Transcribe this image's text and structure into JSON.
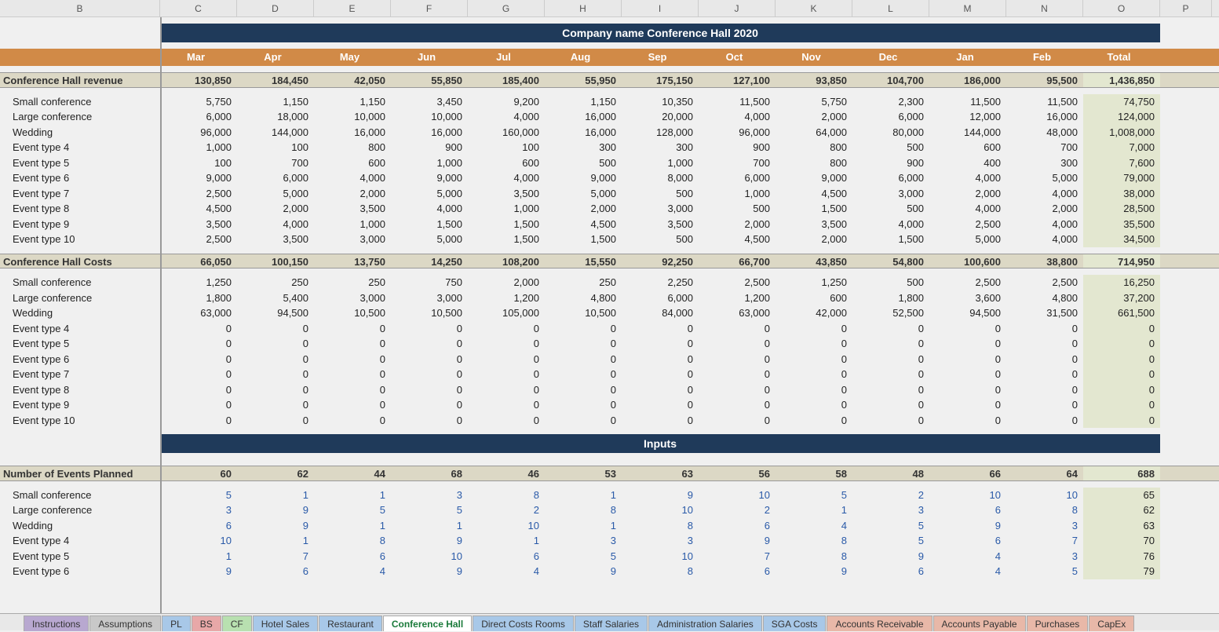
{
  "colLetters": [
    "B",
    "C",
    "D",
    "E",
    "F",
    "G",
    "H",
    "I",
    "J",
    "K",
    "L",
    "M",
    "N",
    "O",
    "P"
  ],
  "title": "Company name Conference Hall 2020",
  "months": [
    "Mar",
    "Apr",
    "May",
    "Jun",
    "Jul",
    "Aug",
    "Sep",
    "Oct",
    "Nov",
    "Dec",
    "Jan",
    "Feb",
    "Total"
  ],
  "inputsTitle": "Inputs",
  "sections": [
    {
      "header": "Conference Hall revenue",
      "totals": [
        "130,850",
        "184,450",
        "42,050",
        "55,850",
        "185,400",
        "55,950",
        "175,150",
        "127,100",
        "93,850",
        "104,700",
        "186,000",
        "95,500",
        "1,436,850"
      ],
      "rows": [
        {
          "label": "Small conference",
          "v": [
            "5,750",
            "1,150",
            "1,150",
            "3,450",
            "9,200",
            "1,150",
            "10,350",
            "11,500",
            "5,750",
            "2,300",
            "11,500",
            "11,500",
            "74,750"
          ]
        },
        {
          "label": "Large conference",
          "v": [
            "6,000",
            "18,000",
            "10,000",
            "10,000",
            "4,000",
            "16,000",
            "20,000",
            "4,000",
            "2,000",
            "6,000",
            "12,000",
            "16,000",
            "124,000"
          ]
        },
        {
          "label": "Wedding",
          "v": [
            "96,000",
            "144,000",
            "16,000",
            "16,000",
            "160,000",
            "16,000",
            "128,000",
            "96,000",
            "64,000",
            "80,000",
            "144,000",
            "48,000",
            "1,008,000"
          ]
        },
        {
          "label": "Event type 4",
          "v": [
            "1,000",
            "100",
            "800",
            "900",
            "100",
            "300",
            "300",
            "900",
            "800",
            "500",
            "600",
            "700",
            "7,000"
          ]
        },
        {
          "label": "Event type 5",
          "v": [
            "100",
            "700",
            "600",
            "1,000",
            "600",
            "500",
            "1,000",
            "700",
            "800",
            "900",
            "400",
            "300",
            "7,600"
          ]
        },
        {
          "label": "Event type 6",
          "v": [
            "9,000",
            "6,000",
            "4,000",
            "9,000",
            "4,000",
            "9,000",
            "8,000",
            "6,000",
            "9,000",
            "6,000",
            "4,000",
            "5,000",
            "79,000"
          ]
        },
        {
          "label": "Event type 7",
          "v": [
            "2,500",
            "5,000",
            "2,000",
            "5,000",
            "3,500",
            "5,000",
            "500",
            "1,000",
            "4,500",
            "3,000",
            "2,000",
            "4,000",
            "38,000"
          ]
        },
        {
          "label": "Event type 8",
          "v": [
            "4,500",
            "2,000",
            "3,500",
            "4,000",
            "1,000",
            "2,000",
            "3,000",
            "500",
            "1,500",
            "500",
            "4,000",
            "2,000",
            "28,500"
          ]
        },
        {
          "label": "Event type 9",
          "v": [
            "3,500",
            "4,000",
            "1,000",
            "1,500",
            "1,500",
            "4,500",
            "3,500",
            "2,000",
            "3,500",
            "4,000",
            "2,500",
            "4,000",
            "35,500"
          ]
        },
        {
          "label": "Event type 10",
          "v": [
            "2,500",
            "3,500",
            "3,000",
            "5,000",
            "1,500",
            "1,500",
            "500",
            "4,500",
            "2,000",
            "1,500",
            "5,000",
            "4,000",
            "34,500"
          ]
        }
      ]
    },
    {
      "header": "Conference Hall Costs",
      "totals": [
        "66,050",
        "100,150",
        "13,750",
        "14,250",
        "108,200",
        "15,550",
        "92,250",
        "66,700",
        "43,850",
        "54,800",
        "100,600",
        "38,800",
        "714,950"
      ],
      "rows": [
        {
          "label": "Small conference",
          "v": [
            "1,250",
            "250",
            "250",
            "750",
            "2,000",
            "250",
            "2,250",
            "2,500",
            "1,250",
            "500",
            "2,500",
            "2,500",
            "16,250"
          ]
        },
        {
          "label": "Large conference",
          "v": [
            "1,800",
            "5,400",
            "3,000",
            "3,000",
            "1,200",
            "4,800",
            "6,000",
            "1,200",
            "600",
            "1,800",
            "3,600",
            "4,800",
            "37,200"
          ]
        },
        {
          "label": "Wedding",
          "v": [
            "63,000",
            "94,500",
            "10,500",
            "10,500",
            "105,000",
            "10,500",
            "84,000",
            "63,000",
            "42,000",
            "52,500",
            "94,500",
            "31,500",
            "661,500"
          ]
        },
        {
          "label": "Event type 4",
          "v": [
            "0",
            "0",
            "0",
            "0",
            "0",
            "0",
            "0",
            "0",
            "0",
            "0",
            "0",
            "0",
            "0"
          ]
        },
        {
          "label": "Event type 5",
          "v": [
            "0",
            "0",
            "0",
            "0",
            "0",
            "0",
            "0",
            "0",
            "0",
            "0",
            "0",
            "0",
            "0"
          ]
        },
        {
          "label": "Event type 6",
          "v": [
            "0",
            "0",
            "0",
            "0",
            "0",
            "0",
            "0",
            "0",
            "0",
            "0",
            "0",
            "0",
            "0"
          ]
        },
        {
          "label": "Event type 7",
          "v": [
            "0",
            "0",
            "0",
            "0",
            "0",
            "0",
            "0",
            "0",
            "0",
            "0",
            "0",
            "0",
            "0"
          ]
        },
        {
          "label": "Event type 8",
          "v": [
            "0",
            "0",
            "0",
            "0",
            "0",
            "0",
            "0",
            "0",
            "0",
            "0",
            "0",
            "0",
            "0"
          ]
        },
        {
          "label": "Event type 9",
          "v": [
            "0",
            "0",
            "0",
            "0",
            "0",
            "0",
            "0",
            "0",
            "0",
            "0",
            "0",
            "0",
            "0"
          ]
        },
        {
          "label": "Event type 10",
          "v": [
            "0",
            "0",
            "0",
            "0",
            "0",
            "0",
            "0",
            "0",
            "0",
            "0",
            "0",
            "0",
            "0"
          ]
        }
      ]
    },
    {
      "header": "Number of Events Planned",
      "totals": [
        "60",
        "62",
        "44",
        "68",
        "46",
        "53",
        "63",
        "56",
        "58",
        "48",
        "66",
        "64",
        "688"
      ],
      "blue": true,
      "rows": [
        {
          "label": "Small conference",
          "v": [
            "5",
            "1",
            "1",
            "3",
            "8",
            "1",
            "9",
            "10",
            "5",
            "2",
            "10",
            "10",
            "65"
          ]
        },
        {
          "label": "Large conference",
          "v": [
            "3",
            "9",
            "5",
            "5",
            "2",
            "8",
            "10",
            "2",
            "1",
            "3",
            "6",
            "8",
            "62"
          ]
        },
        {
          "label": "Wedding",
          "v": [
            "6",
            "9",
            "1",
            "1",
            "10",
            "1",
            "8",
            "6",
            "4",
            "5",
            "9",
            "3",
            "63"
          ]
        },
        {
          "label": "Event type 4",
          "v": [
            "10",
            "1",
            "8",
            "9",
            "1",
            "3",
            "3",
            "9",
            "8",
            "5",
            "6",
            "7",
            "70"
          ]
        },
        {
          "label": "Event type 5",
          "v": [
            "1",
            "7",
            "6",
            "10",
            "6",
            "5",
            "10",
            "7",
            "8",
            "9",
            "4",
            "3",
            "76"
          ]
        },
        {
          "label": "Event type 6",
          "v": [
            "9",
            "6",
            "4",
            "9",
            "4",
            "9",
            "8",
            "6",
            "9",
            "6",
            "4",
            "5",
            "79"
          ]
        }
      ]
    }
  ],
  "tabs": [
    {
      "label": "Instructions",
      "color": "#b8a8d0"
    },
    {
      "label": "Assumptions",
      "color": "#c8c8c8"
    },
    {
      "label": "PL",
      "color": "#a8c8e8"
    },
    {
      "label": "BS",
      "color": "#e8a8a8"
    },
    {
      "label": "CF",
      "color": "#b8e0b0"
    },
    {
      "label": "Hotel Sales",
      "color": "#a8c8e8"
    },
    {
      "label": "Restaurant",
      "color": "#a8c8e8"
    },
    {
      "label": "Conference Hall",
      "color": "#ffffff",
      "active": true
    },
    {
      "label": "Direct Costs Rooms",
      "color": "#a8c8e8"
    },
    {
      "label": "Staff Salaries",
      "color": "#a8c8e8"
    },
    {
      "label": "Administration Salaries",
      "color": "#a8c8e8"
    },
    {
      "label": "SGA Costs",
      "color": "#a8c8e8"
    },
    {
      "label": "Accounts Receivable",
      "color": "#e8b8a8"
    },
    {
      "label": "Accounts Payable",
      "color": "#e8b8a8"
    },
    {
      "label": "Purchases",
      "color": "#e8b8a8"
    },
    {
      "label": "CapEx",
      "color": "#e8b8a8"
    }
  ],
  "styles": {
    "title_bg": "#1f3a5a",
    "title_fg": "#ffffff",
    "month_bg": "#d18a47",
    "month_fg": "#ffffff",
    "section_bg": "#dcd8c5",
    "total_col_bg": "#e3e7d0",
    "blue_value": "#2a5aa8"
  }
}
